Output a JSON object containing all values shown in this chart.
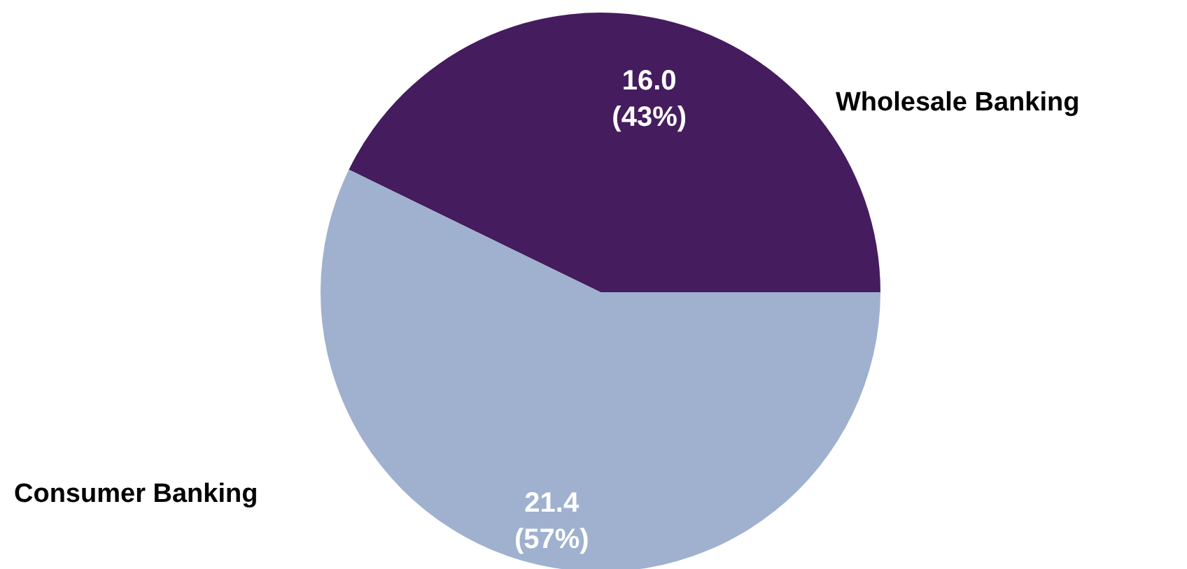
{
  "chart_data": {
    "type": "pie",
    "categories": [
      "Wholesale Banking",
      "Consumer Banking"
    ],
    "values": [
      16.0,
      21.4
    ],
    "colors": [
      "#451c5e",
      "#9fb1cf"
    ],
    "value_labels": [
      "16.0 (43%)",
      "21.4 (57%)"
    ]
  }
}
